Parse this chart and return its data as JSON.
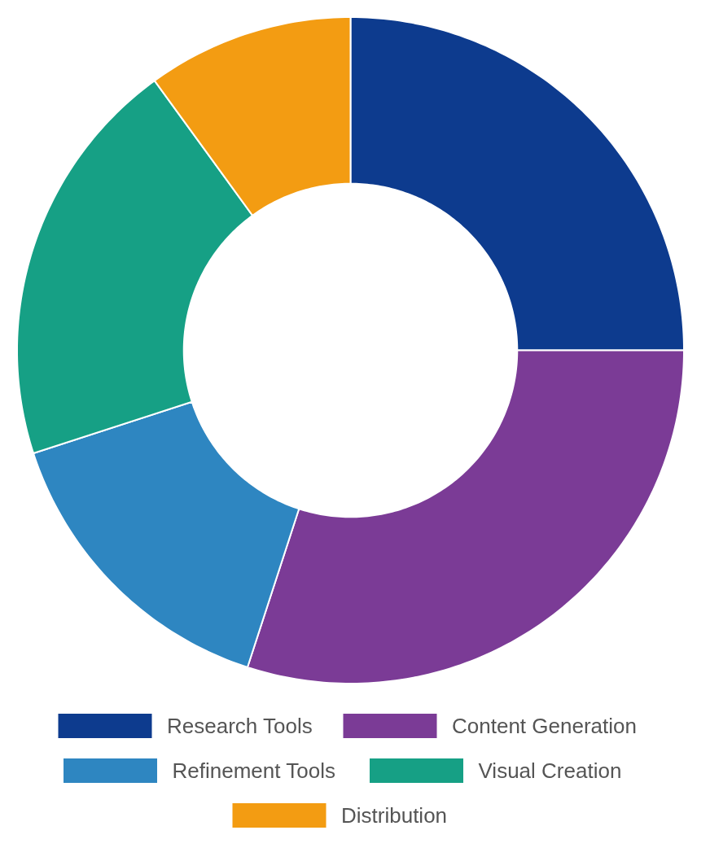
{
  "chart_data": {
    "type": "donut",
    "categories": [
      "Research Tools",
      "Content Generation",
      "Refinement Tools",
      "Visual Creation",
      "Distribution"
    ],
    "values": [
      25,
      30,
      15,
      20,
      10
    ],
    "colors": [
      "#0d3b8e",
      "#7b3b96",
      "#2e86c1",
      "#16a085",
      "#f39c12"
    ],
    "legend": "bottom"
  }
}
